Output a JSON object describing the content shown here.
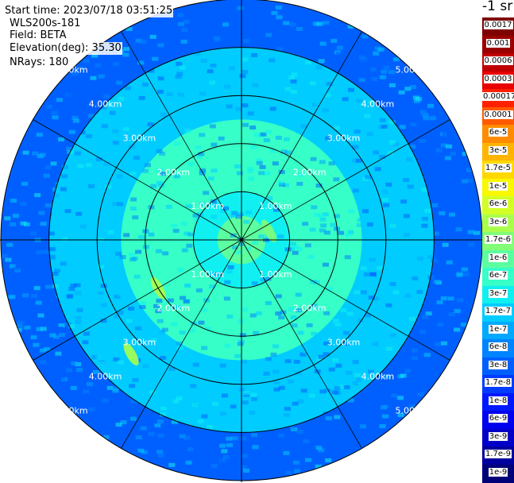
{
  "info": {
    "start_time": "Start time: 2023/07/18 03:51:25",
    "device": "WLS200s-181",
    "field": "Field: BETA",
    "elevation": "Elevation(deg): 35.30",
    "nrays": "NRays: 180"
  },
  "colorbar": {
    "title": "-1 sr",
    "labels": [
      "0.0017",
      "0.001",
      "0.0006",
      "0.0003",
      "0.00017",
      "0.0001",
      "6e-5",
      "3e-5",
      "1.7e-5",
      "1e-5",
      "6e-6",
      "3e-6",
      "1.7e-6",
      "1e-6",
      "6e-7",
      "3e-7",
      "1.7e-7",
      "1e-7",
      "6e-8",
      "3e-8",
      "1.7e-8",
      "1e-8",
      "6e-9",
      "3e-9",
      "1.7e-9",
      "1e-9"
    ],
    "colors": [
      "#7f0000",
      "#9a0000",
      "#c00000",
      "#e80000",
      "#ff2000",
      "#ff5a00",
      "#ff8c00",
      "#ffb400",
      "#ffd800",
      "#f8f800",
      "#d2ff26",
      "#aaff4d",
      "#82ff76",
      "#5cffa0",
      "#36ffc8",
      "#10f0f0",
      "#00ccff",
      "#00a8ff",
      "#0084ff",
      "#0060ff",
      "#003cff",
      "#0018ff",
      "#0000f0",
      "#0000c8",
      "#00009e",
      "#000078"
    ]
  },
  "chart_data": {
    "type": "ppi",
    "title": "",
    "units": "-1 sr",
    "field": "BETA",
    "elevation_deg": 35.3,
    "nrays": 180,
    "range_max_km": 5.0,
    "range_rings": [
      {
        "value_km": 1.0,
        "label": "1.00km"
      },
      {
        "value_km": 2.0,
        "label": "2.00km"
      },
      {
        "value_km": 3.0,
        "label": "3.00km"
      },
      {
        "value_km": 4.0,
        "label": "4.00km"
      },
      {
        "value_km": 5.0,
        "label": "5.00km"
      }
    ],
    "radial_lines_deg": [
      0,
      30,
      60,
      90,
      120,
      150,
      180,
      210,
      240,
      270,
      300,
      330
    ],
    "ring_label_azimuths_deg": [
      45,
      135,
      225,
      315
    ],
    "range_bands": [
      {
        "range_km": [
          0.0,
          0.5
        ],
        "beta": "1e-6"
      },
      {
        "range_km": [
          0.5,
          1.0
        ],
        "beta": "3e-7"
      },
      {
        "range_km": [
          1.0,
          2.5
        ],
        "beta": "6e-7"
      },
      {
        "range_km": [
          2.5,
          4.0
        ],
        "beta": "1.7e-7"
      },
      {
        "range_km": [
          4.0,
          5.0
        ],
        "beta": "3e-8"
      }
    ],
    "features": [
      {
        "range_km": 2.0,
        "azimuth_deg": 240,
        "beta": "3e-6"
      },
      {
        "range_km": 3.3,
        "azimuth_deg": 224,
        "beta": "3e-6"
      },
      {
        "range_km": 0.6,
        "azimuth_deg": 72,
        "beta": "1.7e-6"
      }
    ]
  }
}
